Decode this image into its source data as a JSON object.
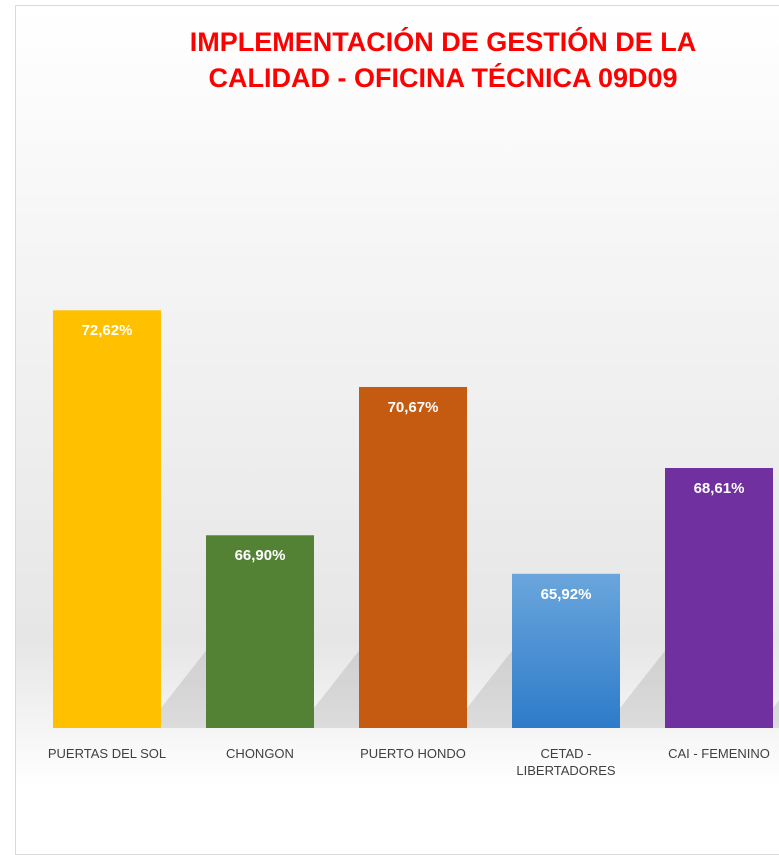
{
  "chart_data": {
    "type": "bar",
    "title": "IMPLEMENTACIÓN DE GESTIÓN DE LA CALIDAD - OFICINA TÉCNICA 09D09",
    "categories": [
      "PUERTAS DEL SOL",
      "CHONGON",
      "PUERTO HONDO",
      "CETAD - LIBERTADORES",
      "CAI - FEMENINO"
    ],
    "values": [
      72.62,
      66.9,
      70.67,
      65.92,
      68.61
    ],
    "value_labels": [
      "72,62%",
      "66,90%",
      "70,67%",
      "65,92%",
      "68,61%"
    ],
    "colors": [
      "#ffc000",
      "#548235",
      "#c55a11",
      "#5b9bd5",
      "#7030a0"
    ],
    "ylim": [
      62,
      77
    ]
  }
}
